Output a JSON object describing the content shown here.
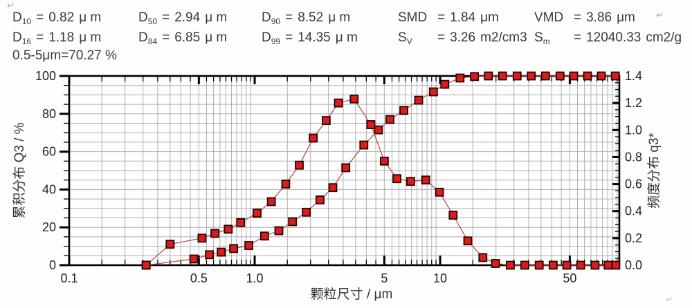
{
  "marks": {
    "return_top_left": "↵",
    "return_header_right": "↵",
    "return_bottom_right": "↵"
  },
  "header": {
    "line1": [
      {
        "name": "D",
        "sub": "10",
        "eq": "=",
        "value": "0.82",
        "unit": "μ m",
        "wide": false
      },
      {
        "name": "D",
        "sub": "50",
        "eq": "=",
        "value": "2.94",
        "unit": "μ m",
        "wide": false
      },
      {
        "name": "D",
        "sub": "90",
        "eq": "=",
        "value": "8.52",
        "unit": "μ m",
        "wide": false
      },
      {
        "name": "SMD",
        "sub": "",
        "eq": "=",
        "value": "1.84",
        "unit": "μm",
        "wide": true
      },
      {
        "name": "VMD",
        "sub": "",
        "eq": "=",
        "value": "3.86",
        "unit": "μm",
        "wide": true
      }
    ],
    "line2": [
      {
        "name": "D",
        "sub": "16",
        "eq": "=",
        "value": "1.18",
        "unit": "μ m",
        "wide": false
      },
      {
        "name": "D",
        "sub": "84",
        "eq": "=",
        "value": "6.85",
        "unit": "μ m",
        "wide": false
      },
      {
        "name": "D",
        "sub": "99",
        "eq": "=",
        "value": "14.35",
        "unit": "μ m",
        "wide": false
      },
      {
        "name": "S",
        "sub": "V",
        "eq": "=",
        "value": "3.26",
        "unit": "m2/cm3",
        "wide": true
      },
      {
        "name": "S",
        "sub": "m",
        "eq": "=",
        "value": "12040.33",
        "unit": "cm2/g",
        "wide": true
      }
    ],
    "line3": "0.5-5μm=70.27 %"
  },
  "chart_data": {
    "type": "line",
    "x_scale": "log",
    "title": "",
    "grid": "on",
    "legend": "none",
    "axes": {
      "x": {
        "label": "颗粒尺寸 / μm",
        "min": 0.1,
        "max": 92.5,
        "major_ticks": [
          0.1,
          0.5,
          1.0,
          5,
          10,
          50
        ],
        "major_tick_labels": [
          "0.1",
          "0.5",
          "1.0",
          "5",
          "10",
          "50"
        ]
      },
      "y_left": {
        "label": "累积分布 Q3 / %",
        "min": 0,
        "max": 100,
        "major_step": 20,
        "minor_step": 5,
        "tick_labels": [
          "0",
          "20",
          "40",
          "60",
          "80",
          "100"
        ]
      },
      "y_right": {
        "label": "频度分布 q3*",
        "min": 0.0,
        "max": 1.4,
        "major_step": 0.2,
        "minor_step": 0.05,
        "tick_labels": [
          "0.0",
          "0.2",
          "0.4",
          "0.6",
          "0.8",
          "1.0",
          "1.2",
          "1.4"
        ]
      }
    },
    "style": {
      "line_color": "#b25050",
      "marker_fill": "#d91d1d",
      "marker_stroke": "#2a0202",
      "marker_size": 11
    },
    "series": [
      {
        "name": "cumulative-distribution-Q3",
        "axis": "y_left",
        "marker": "square",
        "points": [
          [
            0.26,
            0
          ],
          [
            0.47,
            3.3
          ],
          [
            0.57,
            5.5
          ],
          [
            0.66,
            6.9
          ],
          [
            0.77,
            8.8
          ],
          [
            0.93,
            10.4
          ],
          [
            1.13,
            15.4
          ],
          [
            1.35,
            18.2
          ],
          [
            1.6,
            23
          ],
          [
            1.9,
            28
          ],
          [
            2.25,
            34.5
          ],
          [
            2.64,
            41
          ],
          [
            3.1,
            51.5
          ],
          [
            3.88,
            63.5
          ],
          [
            4.65,
            71.5
          ],
          [
            5.36,
            77
          ],
          [
            6.37,
            81.8
          ],
          [
            7.66,
            87.2
          ],
          [
            9.2,
            91.6
          ],
          [
            10.6,
            95.6
          ],
          [
            12.8,
            98.9
          ],
          [
            15.3,
            99.7
          ],
          [
            18.2,
            100
          ],
          [
            21.7,
            100
          ],
          [
            26,
            100
          ],
          [
            31,
            100
          ],
          [
            37,
            100
          ],
          [
            44.3,
            100
          ],
          [
            52.5,
            100
          ],
          [
            62.3,
            100
          ],
          [
            74,
            100
          ],
          [
            88,
            100
          ]
        ]
      },
      {
        "name": "frequency-distribution-q3star",
        "axis": "y_right",
        "marker": "square",
        "points": [
          [
            0.26,
            0
          ],
          [
            0.35,
            0.155
          ],
          [
            0.52,
            0.2
          ],
          [
            0.61,
            0.235
          ],
          [
            0.72,
            0.266
          ],
          [
            0.84,
            0.315
          ],
          [
            1.03,
            0.385
          ],
          [
            1.23,
            0.47
          ],
          [
            1.47,
            0.6
          ],
          [
            1.74,
            0.74
          ],
          [
            2.07,
            0.94
          ],
          [
            2.43,
            1.07
          ],
          [
            2.83,
            1.2
          ],
          [
            3.44,
            1.23
          ],
          [
            4.23,
            1.04
          ],
          [
            5.0,
            0.77
          ],
          [
            5.85,
            0.64
          ],
          [
            6.93,
            0.62
          ],
          [
            8.36,
            0.63
          ],
          [
            9.92,
            0.54
          ],
          [
            11.75,
            0.37
          ],
          [
            14.1,
            0.18
          ],
          [
            17,
            0.056
          ],
          [
            19.9,
            0.013
          ],
          [
            23.9,
            0
          ],
          [
            28.6,
            0
          ],
          [
            34.2,
            0
          ],
          [
            40.7,
            0
          ],
          [
            48.2,
            0
          ],
          [
            57.2,
            0
          ],
          [
            68.4,
            0
          ],
          [
            80.5,
            0
          ],
          [
            88.5,
            0
          ]
        ]
      }
    ]
  }
}
